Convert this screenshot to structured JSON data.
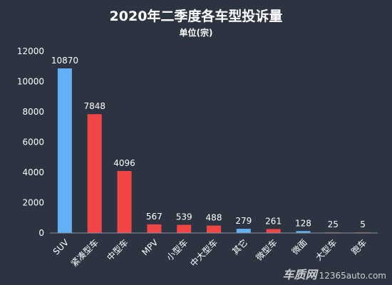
{
  "chart_data": {
    "type": "bar",
    "title": "2020年二季度各车型投诉量",
    "subtitle": "单位(宗)",
    "categories": [
      "SUV",
      "紧凑型车",
      "中型车",
      "MPV",
      "小型车",
      "中大型车",
      "其它",
      "微型车",
      "微面",
      "大型车",
      "跑车"
    ],
    "values": [
      10870,
      7848,
      4096,
      567,
      539,
      488,
      279,
      261,
      128,
      25,
      5
    ],
    "data_labels": [
      "10870",
      "7848",
      "4096",
      "567",
      "539",
      "488",
      "279",
      "261",
      "128",
      "25",
      "5"
    ],
    "bar_colors": [
      "#62b0f5",
      "#f24545",
      "#f24545",
      "#f24545",
      "#f24545",
      "#f24545",
      "#62b0f5",
      "#f24545",
      "#62b0f5",
      "#f24545",
      "#f24545"
    ],
    "ylim": [
      0,
      12000
    ],
    "yticks": [
      0,
      2000,
      4000,
      6000,
      8000,
      10000,
      12000
    ],
    "ytick_labels": [
      "0",
      "2000",
      "4000",
      "6000",
      "8000",
      "10000",
      "12000"
    ],
    "xlabel": "",
    "ylabel": "",
    "grid": false,
    "legend": "none"
  },
  "watermark": {
    "brand": "车质网",
    "site": "12365auto.com"
  }
}
